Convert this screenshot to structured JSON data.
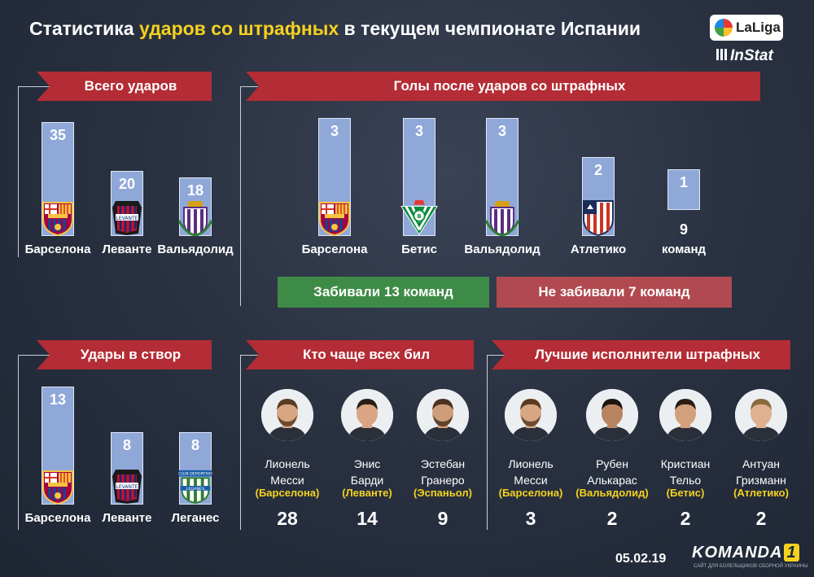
{
  "header": {
    "title_pre": "Статистика ",
    "title_hl": "ударов со штрафных",
    "title_post": " в текущем чемпионате Испании",
    "laliga": "LaLiga",
    "instat": "InStat"
  },
  "colors": {
    "banner": "#b42c35",
    "bar": "#8fa8d8",
    "highlight": "#f4d21f",
    "green": "#3e8b47",
    "red": "#b14a50"
  },
  "chart_data": [
    {
      "type": "bar",
      "title": "Всего ударов",
      "categories": [
        "Барселона",
        "Леванте",
        "Вальядолид"
      ],
      "values": [
        35,
        20,
        18
      ]
    },
    {
      "type": "bar",
      "title": "Голы после ударов со штрафных",
      "categories": [
        "Барселона",
        "Бетис",
        "Вальядолид",
        "Атлетико",
        "9 команд"
      ],
      "values": [
        3,
        3,
        3,
        2,
        1
      ],
      "notes": [
        "Забивали 13 команд",
        "Не забивали 7 команд"
      ]
    },
    {
      "type": "bar",
      "title": "Удары в створ",
      "categories": [
        "Барселона",
        "Леванте",
        "Леганес"
      ],
      "values": [
        13,
        8,
        8
      ]
    }
  ],
  "goals_extra": {
    "count": "9",
    "label": "команд"
  },
  "most_shots": {
    "title": "Кто чаще всех бил",
    "players": [
      {
        "first": "Лионель",
        "last": "Месси",
        "club": "(Барселона)",
        "value": "28"
      },
      {
        "first": "Энис",
        "last": "Барди",
        "club": "(Леванте)",
        "value": "14"
      },
      {
        "first": "Эстебан",
        "last": "Гранеро",
        "club": "(Эспаньол)",
        "value": "9"
      }
    ]
  },
  "best_takers": {
    "title": "Лучшие исполнители штрафных",
    "players": [
      {
        "first": "Лионель",
        "last": "Месси",
        "club": "(Барселона)",
        "value": "3"
      },
      {
        "first": "Рубен",
        "last": "Алькарас",
        "club": "(Вальядолид)",
        "value": "2"
      },
      {
        "first": "Кристиан",
        "last": "Тельо",
        "club": "(Бетис)",
        "value": "2"
      },
      {
        "first": "Антуан",
        "last": "Гризманн",
        "club": "(Атлетико)",
        "value": "2"
      }
    ]
  },
  "footer": {
    "date": "05.02.19",
    "brand": "KOMANDA",
    "brand_num": "1",
    "tagline": "САЙТ ДЛЯ БОЛЕЛЬЩИКОВ СБОРНОЙ УКРАИНЫ"
  }
}
